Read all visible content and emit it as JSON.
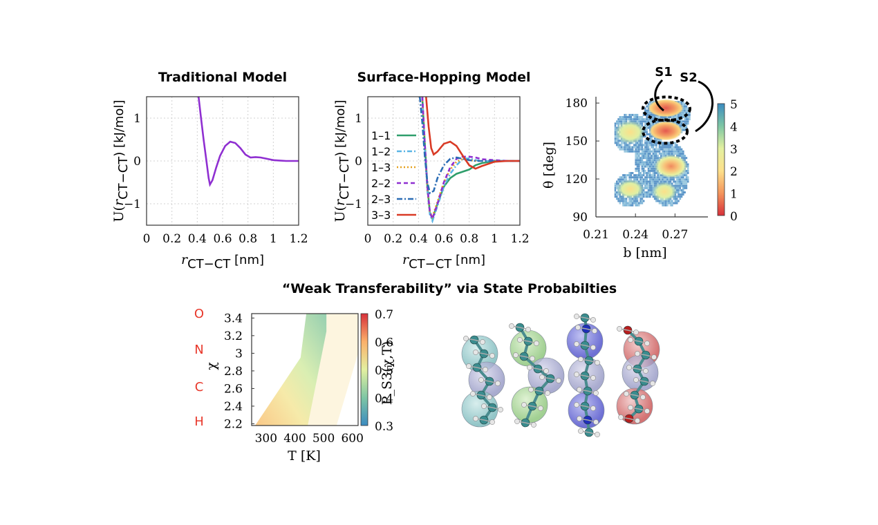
{
  "chart_data": [
    {
      "type": "line",
      "title": "Traditional Model",
      "xlabel": "r_CT−CT [nm]",
      "ylabel": "U(r_CT−CT) [kJ/mol]",
      "xlim": [
        0,
        1.2
      ],
      "ylim": [
        -1.5,
        1.5
      ],
      "xticks": [
        "0",
        "0.2",
        "0.4",
        "0.6",
        "0.8",
        "1",
        "1.2"
      ],
      "yticks": [
        "1",
        "0",
        "−1"
      ],
      "grid": true,
      "series": [
        {
          "color": "#8f2fd1",
          "x": [
            0.41,
            0.43,
            0.45,
            0.47,
            0.49,
            0.5,
            0.52,
            0.55,
            0.58,
            0.62,
            0.66,
            0.7,
            0.74,
            0.78,
            0.82,
            0.86,
            0.9,
            0.95,
            1.0,
            1.05,
            1.1,
            1.15,
            1.2
          ],
          "y": [
            1.5,
            1.0,
            0.5,
            0.05,
            -0.4,
            -0.55,
            -0.45,
            -0.15,
            0.12,
            0.35,
            0.45,
            0.42,
            0.3,
            0.15,
            0.08,
            0.09,
            0.08,
            0.05,
            0.02,
            0.01,
            0.0,
            0.0,
            0.0
          ]
        }
      ]
    },
    {
      "type": "line",
      "title": "Surface-Hopping Model",
      "xlabel": "r_CT−CT [nm]",
      "ylabel": "U(r_CT−CT) [kJ/mol]",
      "xlim": [
        0,
        1.2
      ],
      "ylim": [
        -1.5,
        1.5
      ],
      "xticks": [
        "0",
        "0.2",
        "0.4",
        "0.6",
        "0.8",
        "1",
        "1.2"
      ],
      "yticks": [
        "1",
        "0",
        "−1"
      ],
      "grid": true,
      "legend": "left",
      "series": [
        {
          "name": "1–1",
          "color": "#2e9e6b",
          "dash": "",
          "x": [
            0.43,
            0.45,
            0.47,
            0.49,
            0.51,
            0.55,
            0.6,
            0.65,
            0.7,
            0.75,
            0.8,
            0.85,
            0.9,
            1.0,
            1.1,
            1.2
          ],
          "y": [
            1.5,
            0.4,
            -0.6,
            -1.2,
            -1.35,
            -1.0,
            -0.6,
            -0.4,
            -0.3,
            -0.25,
            -0.2,
            -0.1,
            -0.05,
            0.0,
            0.0,
            0.0
          ]
        },
        {
          "name": "1–2",
          "color": "#5ab4e5",
          "dash": "7,3,2,3",
          "x": [
            0.43,
            0.45,
            0.47,
            0.49,
            0.51,
            0.55,
            0.6,
            0.65,
            0.7,
            0.75,
            0.8,
            0.85,
            0.9,
            1.0,
            1.1,
            1.2
          ],
          "y": [
            1.5,
            0.3,
            -0.7,
            -1.25,
            -1.4,
            -1.05,
            -0.6,
            -0.3,
            -0.1,
            0.05,
            0.06,
            0.02,
            0.0,
            0.0,
            0.0,
            0.0
          ]
        },
        {
          "name": "1–3",
          "color": "#e6a11e",
          "dash": "2,3",
          "x": [
            0.43,
            0.45,
            0.47,
            0.49,
            0.51,
            0.55,
            0.6,
            0.65,
            0.7,
            0.75,
            0.8,
            0.85,
            0.9,
            1.0,
            1.1,
            1.2
          ],
          "y": [
            1.5,
            0.35,
            -0.65,
            -1.2,
            -1.3,
            -0.95,
            -0.5,
            -0.2,
            -0.02,
            0.05,
            0.02,
            0.0,
            0.0,
            0.0,
            0.0,
            0.0
          ]
        },
        {
          "name": "2–2",
          "color": "#8f2fd1",
          "dash": "6,4",
          "x": [
            0.43,
            0.45,
            0.47,
            0.49,
            0.51,
            0.55,
            0.6,
            0.65,
            0.7,
            0.75,
            0.8,
            0.85,
            0.9,
            1.0,
            1.1,
            1.2
          ],
          "y": [
            1.5,
            0.4,
            -0.6,
            -1.2,
            -1.35,
            -1.0,
            -0.5,
            -0.15,
            0.05,
            0.1,
            0.1,
            0.08,
            0.04,
            0.02,
            0.0,
            0.0
          ]
        },
        {
          "name": "2–3",
          "color": "#2a6cb5",
          "dash": "8,3,2,3",
          "x": [
            0.41,
            0.43,
            0.45,
            0.47,
            0.49,
            0.52,
            0.55,
            0.6,
            0.65,
            0.7,
            0.75,
            0.8,
            0.85,
            0.9,
            1.0,
            1.1,
            1.2
          ],
          "y": [
            1.5,
            0.9,
            0.1,
            -0.5,
            -0.75,
            -0.7,
            -0.4,
            -0.1,
            0.05,
            0.08,
            0.05,
            0.02,
            0.0,
            0.0,
            0.0,
            0.0,
            0.0
          ]
        },
        {
          "name": "3–3",
          "color": "#d93a25",
          "dash": "",
          "x": [
            0.46,
            0.48,
            0.5,
            0.52,
            0.55,
            0.6,
            0.65,
            0.7,
            0.75,
            0.8,
            0.85,
            0.9,
            1.0,
            1.1,
            1.2
          ],
          "y": [
            1.5,
            0.8,
            0.3,
            0.15,
            0.22,
            0.4,
            0.45,
            0.35,
            0.12,
            -0.1,
            -0.18,
            -0.12,
            -0.02,
            0.0,
            0.0
          ]
        }
      ]
    },
    {
      "type": "heatmap",
      "xlabel": "b [nm]",
      "ylabel": "θ [deg]",
      "xlim": [
        0.21,
        0.295
      ],
      "ylim": [
        90,
        185
      ],
      "xticks": [
        "0.21",
        "0.24",
        "0.27"
      ],
      "yticks": [
        "180",
        "150",
        "120",
        "90"
      ],
      "colorbar": {
        "min": 0,
        "max": 5,
        "ticks": [
          "0",
          "1",
          "2",
          "3",
          "4",
          "5"
        ]
      },
      "maxima": [
        {
          "b": 0.236,
          "theta": 157,
          "value": 2.0
        },
        {
          "b": 0.263,
          "theta": 176,
          "value": 0.5
        },
        {
          "b": 0.263,
          "theta": 158,
          "value": 0.8
        },
        {
          "b": 0.267,
          "theta": 130,
          "value": 1.6
        },
        {
          "b": 0.236,
          "theta": 112,
          "value": 2.6
        },
        {
          "b": 0.262,
          "theta": 110,
          "value": 2.4
        }
      ],
      "annotations": [
        "S1",
        "S2"
      ]
    },
    {
      "type": "heatmap",
      "title": "“Weak Transferability” via State Probabilties",
      "xlabel": "T [K]",
      "ylabel": "χ",
      "xlim": [
        250,
        620
      ],
      "ylim": [
        2.18,
        3.45
      ],
      "xticks": [
        "300",
        "400",
        "500",
        "600"
      ],
      "yticks": [
        "3.4",
        "3.2",
        "3",
        "2.8",
        "2.6",
        "2.4",
        "2.2"
      ],
      "colorbar": {
        "label": "P_S3(χ,T)",
        "min": 0.3,
        "max": 0.7,
        "ticks": [
          "0.7",
          "0.6",
          "0.5",
          "0.4",
          "0.3"
        ]
      }
    }
  ],
  "element_labels": [
    "O",
    "N",
    "C",
    "H"
  ]
}
